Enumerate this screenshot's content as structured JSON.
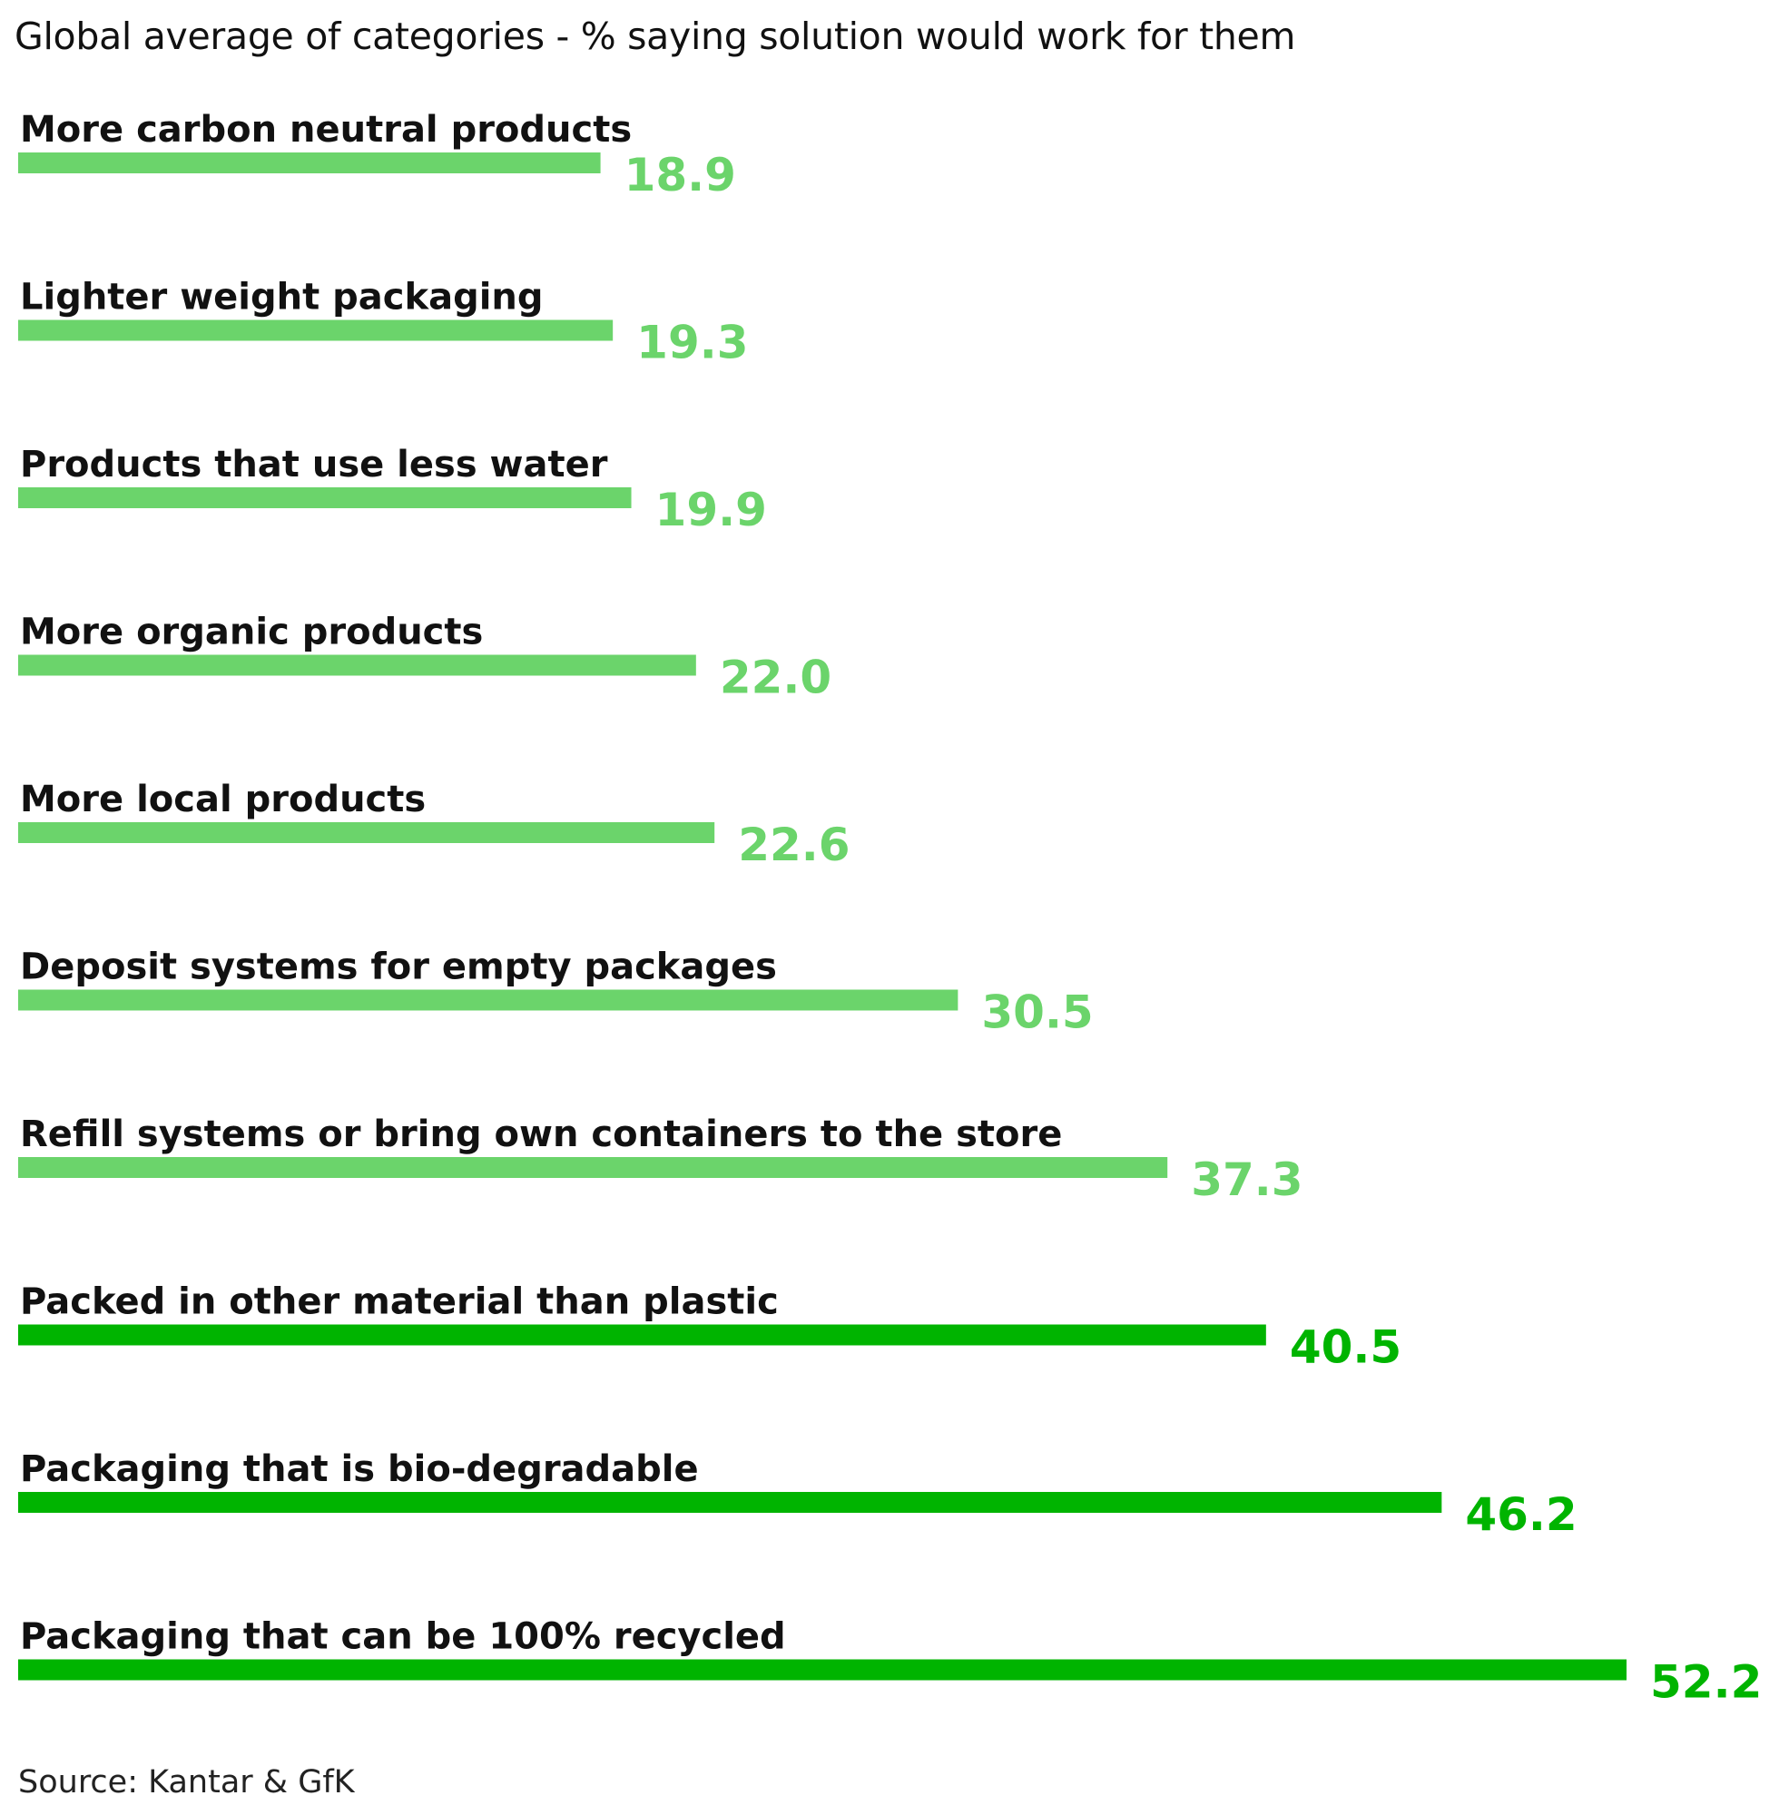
{
  "chart_data": {
    "type": "bar",
    "orientation": "horizontal",
    "title": "Global average of categories - % saying solution would work for them",
    "source": "Source: Kantar & GfK",
    "categories": [
      "More carbon neutral products",
      "Lighter weight packaging",
      "Products that use less water",
      "More organic products",
      "More local products",
      "Deposit systems for empty packages",
      "Refill systems or bring own containers to the store",
      "Packed in other material than plastic",
      "Packaging that is bio-degradable",
      "Packaging that can be 100% recycled"
    ],
    "values": [
      18.9,
      19.3,
      19.9,
      22.0,
      22.6,
      30.5,
      37.3,
      40.5,
      46.2,
      52.2
    ],
    "value_labels": [
      "18.9",
      "19.3",
      "19.9",
      "22.0",
      "22.6",
      "30.5",
      "37.3",
      "40.5",
      "46.2",
      "52.2"
    ],
    "colors": [
      "#6bd46b",
      "#6bd46b",
      "#6bd46b",
      "#6bd46b",
      "#6bd46b",
      "#6bd46b",
      "#6bd46b",
      "#00b400",
      "#00b400",
      "#00b400"
    ],
    "xlim": [
      0,
      52.2
    ],
    "grid": false,
    "xlabel": "",
    "ylabel": ""
  }
}
